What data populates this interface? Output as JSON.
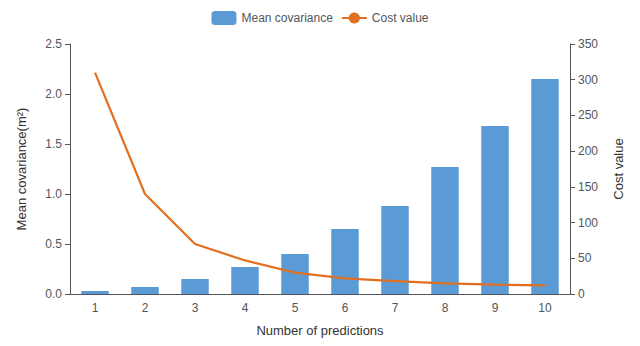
{
  "chart_data": {
    "type": "bar",
    "xlabel": "Number of predictions",
    "ylabel": "Mean covariance(m²)",
    "y2label": "Cost value",
    "categories": [
      "1",
      "2",
      "3",
      "4",
      "5",
      "6",
      "7",
      "8",
      "9",
      "10"
    ],
    "series": [
      {
        "name": "Mean covariance",
        "type": "bar",
        "color": "#5B9BD5",
        "values": [
          0.03,
          0.07,
          0.15,
          0.27,
          0.4,
          0.65,
          0.88,
          1.27,
          1.68,
          2.15
        ]
      },
      {
        "name": "Cost value",
        "type": "line",
        "color": "#E07020",
        "axis": "y2",
        "values": [
          310,
          140,
          70,
          47,
          30,
          22,
          18,
          15,
          13,
          12
        ]
      }
    ],
    "ylim": [
      0,
      2.5
    ],
    "yticks": [
      {
        "value": 0,
        "label": "0.0"
      },
      0.5,
      {
        "value": 1.0,
        "label": "1.0"
      },
      1.5,
      {
        "value": 2.0,
        "label": "2.0"
      },
      2.5
    ],
    "y2lim": [
      0,
      350
    ],
    "y2ticks": [
      0,
      50,
      100,
      150,
      200,
      250,
      300,
      350
    ],
    "legend": "top",
    "grid": false
  }
}
